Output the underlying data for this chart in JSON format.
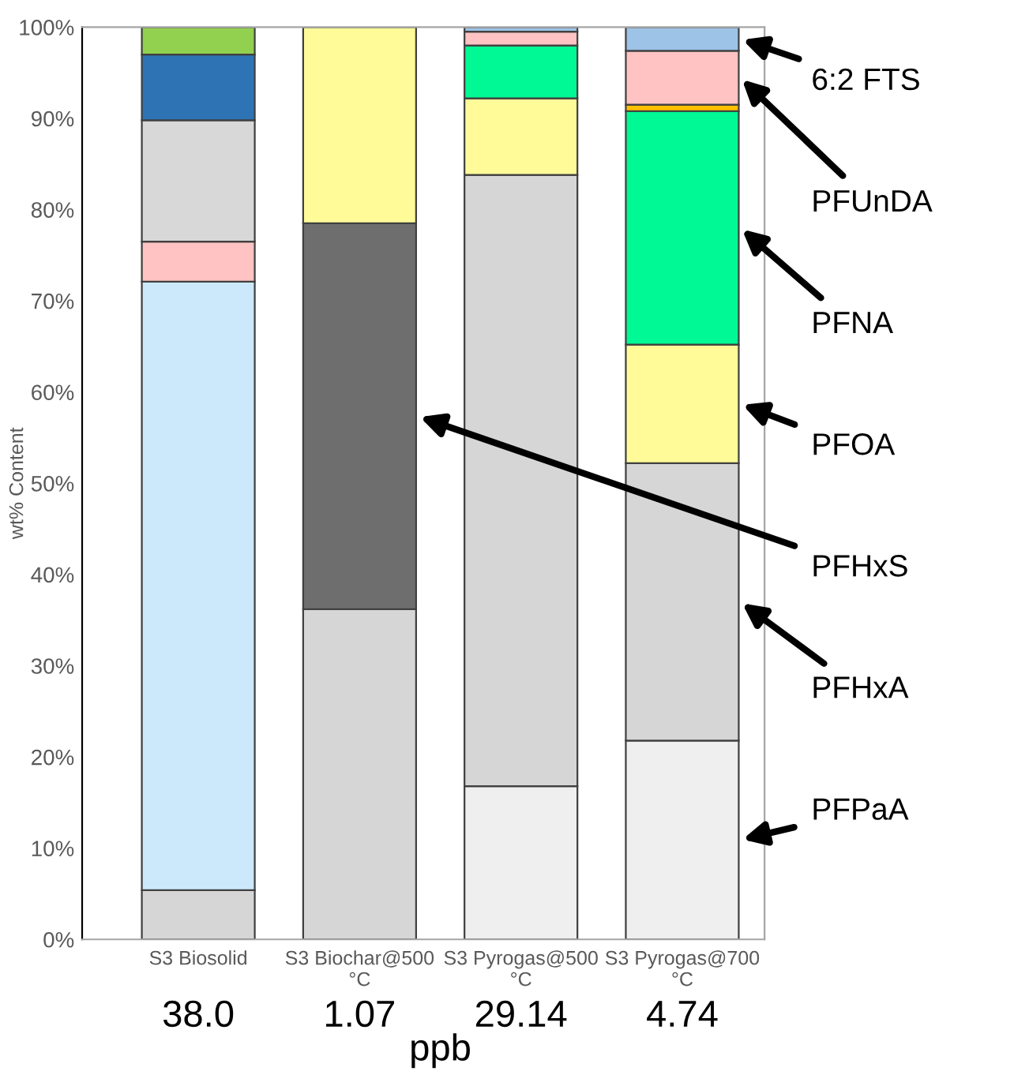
{
  "chart_data": {
    "type": "bar",
    "stacked": true,
    "ylabel": "wt% Content",
    "xlabel": "ppb",
    "categories": [
      "S3 Biosolid",
      "S3 Biochar@500\n°C",
      "S3 Pyrogas@500\n°C",
      "S3 Pyrogas@700\n°C"
    ],
    "series": [
      {
        "name": "PFPaA",
        "color": "#efefef",
        "values": [
          null,
          null,
          16.8,
          21.8
        ]
      },
      {
        "name": "PFHxA",
        "color": "#d6d6d6",
        "values": [
          5.4,
          36.2,
          67.0,
          30.4
        ]
      },
      {
        "name": "PFHxS",
        "color": "#6e6e6e",
        "values": [
          null,
          42.3,
          null,
          null
        ]
      },
      {
        "color": "#cce9fc",
        "values": [
          66.7,
          null,
          null,
          null
        ]
      },
      {
        "name": "PFOA",
        "color": "#fffb99",
        "values": [
          null,
          21.5,
          8.4,
          13.0
        ]
      },
      {
        "name": "PFNA",
        "color": "#00f994",
        "values": [
          null,
          null,
          5.8,
          25.6
        ]
      },
      {
        "color": "#ffc000",
        "values": [
          null,
          null,
          null,
          0.7
        ]
      },
      {
        "name": "PFUnDA",
        "color": "#ffc3c3",
        "values": [
          4.4,
          null,
          1.5,
          5.9
        ]
      },
      {
        "color": "#d8d8d8",
        "values": [
          13.3,
          null,
          null,
          null
        ]
      },
      {
        "color": "#2e74b5",
        "values": [
          7.2,
          null,
          null,
          null
        ]
      },
      {
        "color": "#92d050",
        "values": [
          3.0,
          null,
          null,
          null
        ]
      },
      {
        "name": "6:2 FTS",
        "color": "#9dc3e6",
        "values": [
          null,
          null,
          0.5,
          2.6
        ]
      }
    ],
    "annotations": [
      "38.0",
      "1.07",
      "29.14",
      "4.74"
    ],
    "ylim": [
      0,
      100
    ],
    "yticks": [
      {
        "value": 0,
        "label": "0%"
      },
      {
        "value": 10,
        "label": "10%"
      },
      {
        "value": 20,
        "label": "20%"
      },
      {
        "value": 30,
        "label": "30%"
      },
      {
        "value": 40,
        "label": "40%"
      },
      {
        "value": 50,
        "label": "50%"
      },
      {
        "value": 60,
        "label": "60%"
      },
      {
        "value": 70,
        "label": "70%"
      },
      {
        "value": 80,
        "label": "80%"
      },
      {
        "value": 90,
        "label": "90%"
      },
      {
        "value": 100,
        "label": "100%"
      }
    ],
    "grid": false,
    "legend": "right"
  }
}
